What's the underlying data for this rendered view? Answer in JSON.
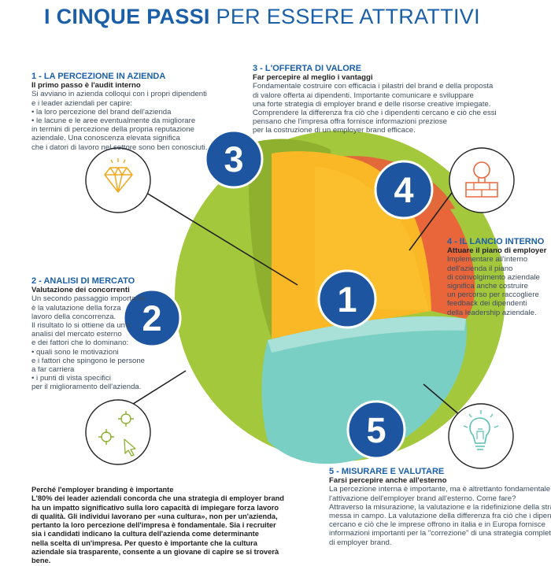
{
  "title": {
    "bold": "I CINQUE PASSI",
    "light": " PER ESSERE ATTRATTIVI"
  },
  "colors": {
    "blue": "#1a5fa8",
    "green": "#a3c83c",
    "yellow": "#fbb826",
    "orange": "#e8663a",
    "teal": "#79cfc3"
  },
  "badges": [
    "1",
    "2",
    "3",
    "4",
    "5"
  ],
  "icons": [
    "diamond-icon",
    "target-icon",
    "bricks-icon",
    "lightbulb-icon"
  ],
  "sections": {
    "s1": {
      "heading": "1 - LA PERCEZIONE IN AZIENDA",
      "subheading": "Il primo passo è l'audit interno",
      "lines": [
        "Si avviano in azienda colloqui con i propri dipendenti",
        "e i leader aziendali per capire:",
        "• la loro percezione del brand dell'azienda",
        "• le lacune e le aree eventualmente da migliorare",
        "in termini di percezione della propria reputazione",
        "aziendale. Una conoscenza elevata significa",
        "che i datori di lavoro nel settore sono ben conosciuti."
      ]
    },
    "s2": {
      "heading": "2 - ANALISI DI MERCATO",
      "subheading": "Valutazione dei concorrenti",
      "lines": [
        "Un secondo passaggio importante",
        "è la valutazione della forza",
        "lavoro della concorrenza.",
        "Il risultato lo si ottiene da un'a",
        "analisi del mercato esterno",
        "e dei fattori che lo dominano:",
        "• quali sono le motivazioni",
        "e i fattori che spingono le persone",
        "a far carriera",
        "• i punti di vista specifici",
        "per il miglioramento dell'azienda."
      ]
    },
    "s3": {
      "heading": "3 - L'OFFERTA DI VALORE",
      "subheading": "Far percepire al meglio i vantaggi",
      "lines": [
        "Fondamentale costruire con efficacia i pilastri del brand e della proposta",
        "di valore offerta ai dipendenti. Importante comunicare e sviluppare",
        "una forte strategia di employer brand e delle risorse creative impiegate.",
        "Comprendere la differenza fra ciò che i dipendenti cercano e ciò che essi",
        "pensano che l'impresa offra fornisce informazioni preziose",
        "per la costruzione di un employer brand efficace."
      ]
    },
    "s4": {
      "heading": "4 - IL LANCIO INTERNO",
      "subheading": "Attuare il piano di employer",
      "lines": [
        "Implementare all'interno",
        "dell'azienda il piano",
        "di coinvolgimento aziendale",
        "significa anche costruire",
        "un percorso per raccogliere",
        "feedback dei dipendenti",
        "della leadership aziendale."
      ]
    },
    "s5": {
      "heading": "5 - MISURARE E VALUTARE",
      "subheading": "Farsi percepire anche all'esterno",
      "lines": [
        "La percezione interna è importante, ma è altrettanto fondamentale",
        "l'attivazione dell'employer brand all'esterno. Come fare?",
        "Attraverso la misurazione, la valutazione e la ridefinizione della strategia",
        "messa in campo. La valutazione della differenza fra ciò che i dipendenti",
        "cercano e ciò che le imprese offrono in italia e in Europa fornisce",
        "informazioni importanti per la \"correzione\" di una strategia completa",
        "di employer brand."
      ]
    }
  },
  "footer": {
    "lines": [
      "Perché l'employer branding è importante",
      "L'80% dei leader aziendali concorda che una strategia di employer brand",
      "ha un impatto significativo sulla loro capacità di impiegare forza lavoro",
      "di qualità. Gli individui lavorano per «una cultura», non per un'azienda,",
      "pertanto la loro percezione dell'impresa è fondamentale. Sia i recruiter",
      "sia i candidati indicano la cultura dell'azienda come determinante",
      "nella scelta di un'impresa. Per questo è importante che la cultura",
      "aziendale sia trasparente, consente a un giovane di capire se si troverà",
      "bene."
    ]
  }
}
